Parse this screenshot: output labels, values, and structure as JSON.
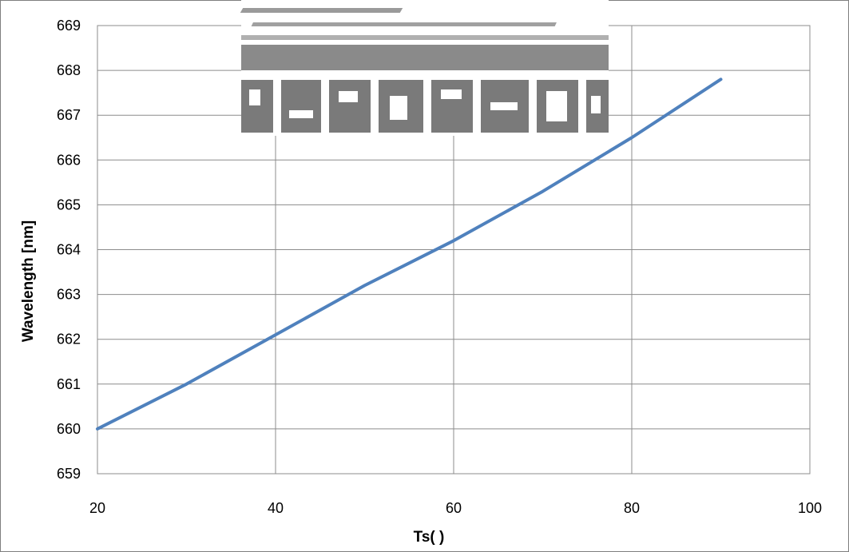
{
  "chart_data": {
    "type": "line",
    "xlabel": "Ts(    )",
    "ylabel": "Wavelength  [nm]",
    "xlim": [
      20,
      100
    ],
    "ylim": [
      659,
      669
    ],
    "x_ticks": [
      20,
      40,
      60,
      80,
      100
    ],
    "y_ticks": [
      659,
      660,
      661,
      662,
      663,
      664,
      665,
      666,
      667,
      668,
      669
    ],
    "grid": true,
    "series_color": "#4f81bd",
    "series": [
      {
        "x": [
          20,
          30,
          40,
          50,
          60,
          70,
          80,
          90
        ],
        "values": [
          660.0,
          661.0,
          662.1,
          663.2,
          664.2,
          665.3,
          666.5,
          667.8
        ]
      }
    ]
  },
  "watermark_color": "#8a8a8a"
}
